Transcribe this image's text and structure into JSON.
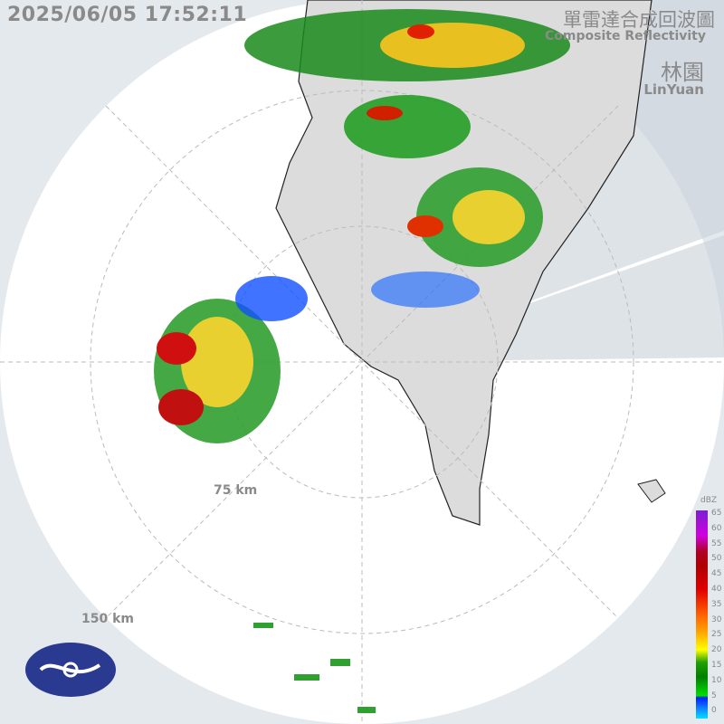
{
  "timestamp": "2025/06/05 17:52:11",
  "title_zh": "單雷達合成回波圖",
  "title_en": "Composite Reflectivity",
  "site_zh": "林園",
  "site_en": "LinYuan",
  "rings": [
    {
      "label": "75 km"
    },
    {
      "label": "150 km"
    }
  ],
  "colorbar": {
    "unit": "dBZ",
    "ticks": [
      "65",
      "60",
      "55",
      "50",
      "45",
      "40",
      "35",
      "30",
      "25",
      "20",
      "15",
      "10",
      "5",
      "0"
    ]
  },
  "colors": {
    "background": "#e4e9ee",
    "radar_area": "#ffffff",
    "land": "#dcdcdc",
    "blocked_sector": "#c8d0d8"
  },
  "logo": "Central Weather Administration emblem"
}
